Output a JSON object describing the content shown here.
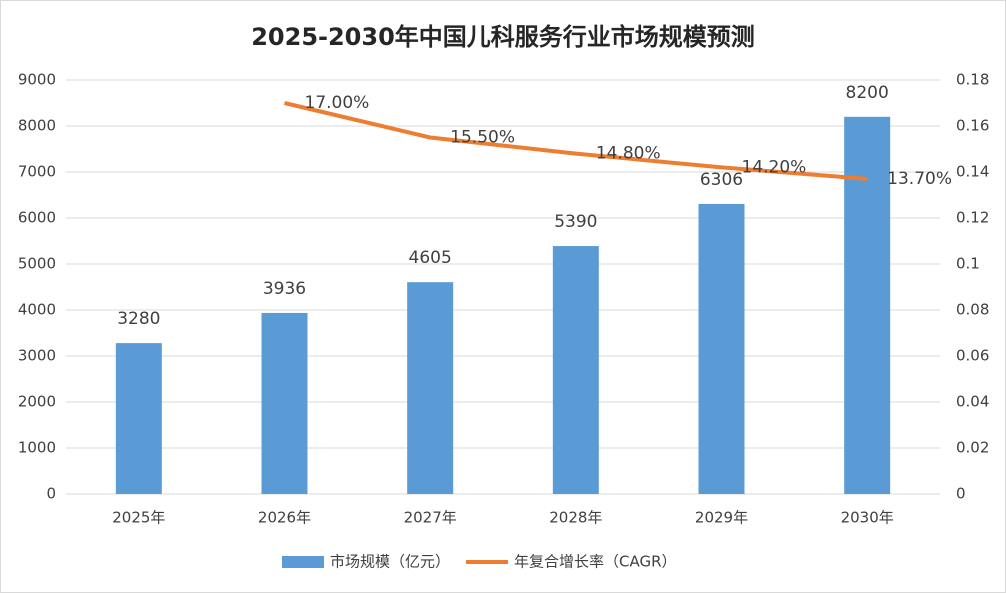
{
  "chart_data": {
    "type": "bar-line",
    "title": "2025-2030年中国儿科服务行业市场规模预测",
    "categories": [
      "2025年",
      "2026年",
      "2027年",
      "2028年",
      "2029年",
      "2030年"
    ],
    "series": [
      {
        "name": "市场规模（亿元）",
        "type": "bar",
        "color": "#5b9bd5",
        "values": [
          3280,
          3936,
          4605,
          5390,
          6306,
          8200
        ]
      },
      {
        "name": "年复合增长率（CAGR）",
        "type": "line",
        "axis": "y2",
        "color": "#ed7d31",
        "values": [
          null,
          0.17,
          0.155,
          0.148,
          0.142,
          0.137
        ],
        "value_labels": [
          null,
          "17.00%",
          "15.50%",
          "14.80%",
          "14.20%",
          "13.70%"
        ]
      }
    ],
    "ylim": [
      0,
      9000
    ],
    "yticks": [
      0,
      1000,
      2000,
      3000,
      4000,
      5000,
      6000,
      7000,
      8000,
      9000
    ],
    "y2lim": [
      0,
      0.18
    ],
    "y2ticks": [
      0,
      0.02,
      0.04,
      0.06,
      0.08,
      0.1,
      0.12,
      0.14,
      0.16,
      0.18
    ],
    "grid": true,
    "legend": "bottom"
  }
}
